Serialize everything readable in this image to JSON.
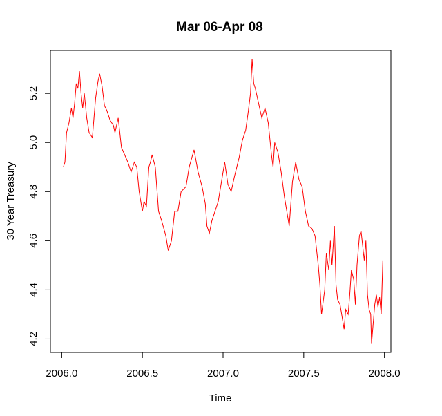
{
  "chart_data": {
    "type": "line",
    "title": "Mar 06-Apr 08",
    "xlabel": "Time",
    "ylabel": "30 Year Treasury",
    "xlim": [
      2005.93,
      2008.04
    ],
    "ylim": [
      4.145,
      5.375
    ],
    "x_ticks": [
      2006.0,
      2006.5,
      2007.0,
      2007.5,
      2008.0
    ],
    "x_tick_labels": [
      "2006.0",
      "2006.5",
      "2007.0",
      "2007.5",
      "2008.0"
    ],
    "y_ticks": [
      4.2,
      4.4,
      4.6,
      4.8,
      5.0,
      5.2
    ],
    "y_tick_labels": [
      "4.2",
      "4.4",
      "4.6",
      "4.8",
      "5.0",
      "5.2"
    ],
    "grid": false,
    "legend": "none",
    "series_color": "#ff0000",
    "series": [
      {
        "x": [
          2006.01,
          2006.02,
          2006.03,
          2006.045,
          2006.06,
          2006.07,
          2006.08,
          2006.09,
          2006.1,
          2006.11,
          2006.12,
          2006.13,
          2006.14,
          2006.155,
          2006.17,
          2006.19,
          2006.21,
          2006.225,
          2006.235,
          2006.25,
          2006.265,
          2006.28,
          2006.3,
          2006.32,
          2006.33,
          2006.35,
          2006.37,
          2006.39,
          2006.41,
          2006.43,
          2006.45,
          2006.465,
          2006.48,
          2006.5,
          2006.51,
          2006.525,
          2006.54,
          2006.55,
          2006.56,
          2006.58,
          2006.6,
          2006.62,
          2006.645,
          2006.66,
          2006.68,
          2006.7,
          2006.72,
          2006.74,
          2006.77,
          2006.79,
          2006.82,
          2006.845,
          2006.87,
          2006.89,
          2006.9,
          2006.915,
          2006.93,
          2006.95,
          2006.97,
          2006.99,
          2007.01,
          2007.03,
          2007.05,
          2007.07,
          2007.1,
          2007.12,
          2007.14,
          2007.155,
          2007.17,
          2007.18,
          2007.19,
          2007.2,
          2007.22,
          2007.24,
          2007.26,
          2007.28,
          2007.3,
          2007.31,
          2007.32,
          2007.34,
          2007.36,
          2007.38,
          2007.4,
          2007.41,
          2007.43,
          2007.45,
          2007.47,
          2007.49,
          2007.51,
          2007.53,
          2007.55,
          2007.57,
          2007.59,
          2007.6,
          2007.61,
          2007.63,
          2007.64,
          2007.655,
          2007.665,
          2007.675,
          2007.69,
          2007.7,
          2007.71,
          2007.725,
          2007.74,
          2007.75,
          2007.76,
          2007.775,
          2007.785,
          2007.795,
          2007.81,
          2007.82,
          2007.83,
          2007.845,
          2007.855,
          2007.865,
          2007.875,
          2007.885,
          2007.895,
          2007.905,
          2007.915,
          2007.92,
          2007.93,
          2007.94,
          2007.95,
          2007.96,
          2007.97,
          2007.98,
          2007.99
        ],
        "y": [
          4.9,
          4.92,
          5.04,
          5.08,
          5.14,
          5.1,
          5.16,
          5.24,
          5.22,
          5.29,
          5.2,
          5.14,
          5.2,
          5.1,
          5.04,
          5.02,
          5.18,
          5.25,
          5.28,
          5.23,
          5.15,
          5.13,
          5.09,
          5.07,
          5.04,
          5.1,
          4.98,
          4.95,
          4.92,
          4.88,
          4.92,
          4.9,
          4.8,
          4.72,
          4.76,
          4.74,
          4.9,
          4.92,
          4.95,
          4.9,
          4.72,
          4.68,
          4.62,
          4.56,
          4.6,
          4.72,
          4.72,
          4.8,
          4.82,
          4.9,
          4.97,
          4.88,
          4.82,
          4.75,
          4.66,
          4.63,
          4.68,
          4.72,
          4.76,
          4.84,
          4.92,
          4.83,
          4.8,
          4.86,
          4.94,
          5.01,
          5.05,
          5.12,
          5.2,
          5.34,
          5.24,
          5.22,
          5.16,
          5.1,
          5.14,
          5.08,
          4.95,
          4.9,
          5.0,
          4.96,
          4.88,
          4.78,
          4.7,
          4.66,
          4.84,
          4.92,
          4.85,
          4.82,
          4.72,
          4.66,
          4.65,
          4.62,
          4.5,
          4.42,
          4.3,
          4.4,
          4.55,
          4.48,
          4.6,
          4.5,
          4.66,
          4.42,
          4.36,
          4.34,
          4.28,
          4.24,
          4.32,
          4.3,
          4.38,
          4.48,
          4.44,
          4.34,
          4.5,
          4.62,
          4.64,
          4.58,
          4.52,
          4.6,
          4.38,
          4.32,
          4.3,
          4.18,
          4.26,
          4.34,
          4.38,
          4.33,
          4.37,
          4.3,
          4.52
        ]
      }
    ]
  }
}
